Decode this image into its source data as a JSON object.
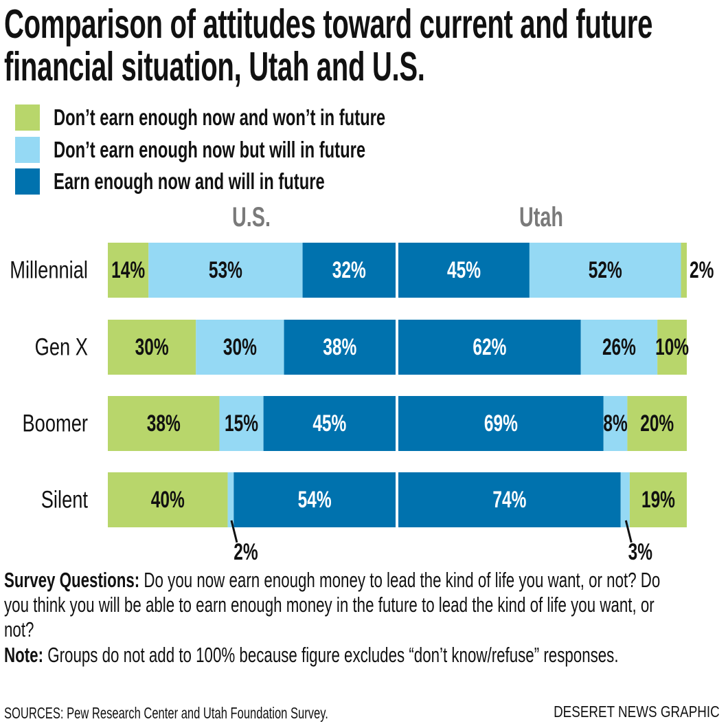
{
  "title": "Comparison of attitudes toward current and future financial situation, Utah and U.S.",
  "colors": {
    "wont": "#b8d66b",
    "will": "#95d9f4",
    "earn": "#0072ae"
  },
  "chart_data": {
    "type": "bar",
    "orientation": "horizontal-stacked",
    "title": "Comparison of attitudes toward current and future financial situation, Utah and U.S.",
    "legend": [
      {
        "key": "wont",
        "label": "Don’t earn enough now and won’t in future"
      },
      {
        "key": "will",
        "label": "Don’t earn enough now but will in future"
      },
      {
        "key": "earn",
        "label": "Earn enough now and will in future"
      }
    ],
    "legend_position": "top-left",
    "categories": [
      "Millennial",
      "Gen X",
      "Boomer",
      "Silent"
    ],
    "panels": [
      {
        "name": "U.S.",
        "order": [
          "wont",
          "will",
          "earn"
        ],
        "series": {
          "wont": [
            14,
            30,
            38,
            40
          ],
          "will": [
            53,
            30,
            15,
            2
          ],
          "earn": [
            32,
            38,
            45,
            54
          ]
        }
      },
      {
        "name": "Utah",
        "order": [
          "earn",
          "will",
          "wont"
        ],
        "series": {
          "earn": [
            45,
            62,
            69,
            74
          ],
          "will": [
            52,
            26,
            8,
            3
          ],
          "wont": [
            2,
            10,
            20,
            19
          ]
        }
      }
    ],
    "value_suffix": "%"
  },
  "notes": {
    "survey_label": "Survey Questions:",
    "survey_text": " Do you now earn enough money to lead the kind of life you want, or not? Do you think you will be able to earn enough money in the future to lead the kind of life you want, or not?",
    "note_label": "Note:",
    "note_text": " Groups do not add to 100% because figure excludes “don’t know/refuse” responses."
  },
  "sources": "SOURCES: Pew Research Center and Utah Foundation Survey.",
  "credit": "DESERET NEWS GRAPHIC"
}
